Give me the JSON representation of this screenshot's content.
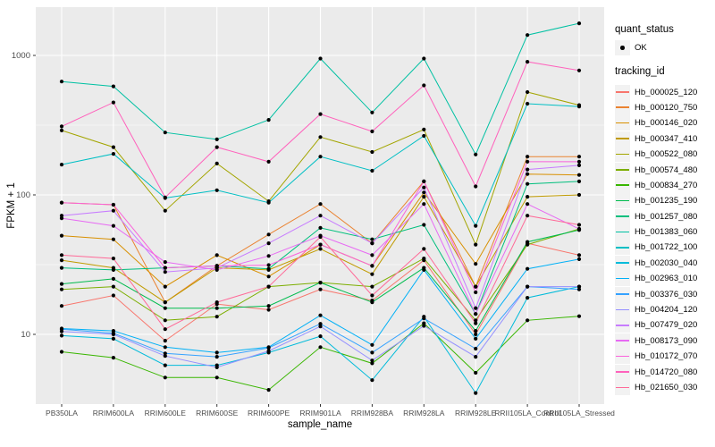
{
  "figure": {
    "background": "#FFFFFF",
    "panel_bg": "#EBEBEB",
    "grid_color": "#FFFFFF",
    "tick_color": "#333333",
    "axis_text_color": "#4D4D4D",
    "point_color": "#000000",
    "legend_key_bg": "#F2F2F2"
  },
  "chart_data": {
    "type": "line",
    "title": "",
    "xlabel": "sample_name",
    "ylabel": "FPKM + 1",
    "y_scale": "log10",
    "grid": true,
    "legend_position": "right",
    "y_ticks": [
      "10",
      "100",
      "1000"
    ],
    "y_minor_ticks": [
      31.623,
      316.23
    ],
    "y_range_log10": [
      0.5,
      3.3462
    ],
    "categories": [
      "PB350LA",
      "RRIM600LA",
      "RRIM600LE",
      "RRIM600SE",
      "RRIM600PE",
      "RRIM901LA",
      "RRIM928BA",
      "RRIM928LA",
      "RRIM928LE",
      "RRII105LA_Control",
      "RRII105LA_Stressed"
    ],
    "legend": {
      "quant_status_title": "quant_status",
      "quant_status_items": [
        "OK"
      ],
      "tracking_id_title": "tracking_id"
    },
    "series": [
      {
        "name": "Hb_000025_120",
        "color": "#F8766D",
        "values": [
          16,
          19,
          9,
          16.5,
          15,
          21,
          17.5,
          34,
          10,
          45,
          37
        ]
      },
      {
        "name": "Hb_000120_750",
        "color": "#EA8331",
        "values": [
          88,
          85,
          17,
          31,
          52,
          86,
          45,
          125,
          22,
          188,
          188
        ]
      },
      {
        "name": "Hb_000146_020",
        "color": "#D89000",
        "values": [
          51,
          48,
          22,
          37,
          26,
          44,
          31,
          104,
          32,
          141,
          139
        ]
      },
      {
        "name": "Hb_000347_410",
        "color": "#C09B00",
        "values": [
          34,
          30,
          17,
          30,
          29,
          41,
          27,
          97,
          22,
          97,
          100
        ]
      },
      {
        "name": "Hb_000522_080",
        "color": "#A3A500",
        "values": [
          290,
          220,
          77,
          168,
          90,
          260,
          203,
          294,
          44,
          546,
          440
        ]
      },
      {
        "name": "Hb_000574_480",
        "color": "#7CAE00",
        "values": [
          21,
          22,
          12.6,
          13.4,
          22,
          23.5,
          22,
          35,
          12.6,
          44,
          57
        ]
      },
      {
        "name": "Hb_000834_270",
        "color": "#39B600",
        "values": [
          7.5,
          6.8,
          4.9,
          4.9,
          4,
          8.1,
          6.2,
          12,
          5.3,
          12.6,
          13.5
        ]
      },
      {
        "name": "Hb_001235_190",
        "color": "#00BB4E",
        "values": [
          23,
          25,
          15.4,
          15.4,
          16,
          23.5,
          17,
          30,
          10.6,
          46,
          56
        ]
      },
      {
        "name": "Hb_001257_080",
        "color": "#00BF7D",
        "values": [
          30,
          29,
          30,
          31,
          29.5,
          58,
          48,
          61,
          14,
          120,
          125
        ]
      },
      {
        "name": "Hb_001383_060",
        "color": "#00C1A3",
        "values": [
          650,
          600,
          280,
          250,
          345,
          950,
          390,
          950,
          195,
          1400,
          1700
        ]
      },
      {
        "name": "Hb_001722_100",
        "color": "#00BFC4",
        "values": [
          165,
          197,
          95,
          108,
          88,
          188,
          149,
          265,
          60,
          451,
          430
        ]
      },
      {
        "name": "Hb_002030_040",
        "color": "#00BBDA",
        "values": [
          9.8,
          9.3,
          6,
          6,
          7.4,
          9.7,
          4.7,
          13.4,
          3.8,
          18.3,
          22
        ]
      },
      {
        "name": "Hb_002963_010",
        "color": "#00B0F6",
        "values": [
          11,
          10.6,
          8.1,
          7.4,
          8.1,
          13.7,
          8.4,
          29,
          9.3,
          29.5,
          34.6
        ]
      },
      {
        "name": "Hb_003376_030",
        "color": "#35A2FF",
        "values": [
          10.9,
          10.2,
          7.3,
          6.9,
          8,
          11.9,
          7.4,
          13,
          7.9,
          22,
          21
        ]
      },
      {
        "name": "Hb_004204_120",
        "color": "#9590FF",
        "values": [
          10.5,
          10,
          7,
          5.8,
          7.6,
          11.4,
          6.5,
          11.5,
          6.9,
          22,
          22
        ]
      },
      {
        "name": "Hb_007479_020",
        "color": "#C77CFF",
        "values": [
          71,
          77,
          28,
          30,
          45,
          71,
          45,
          113,
          15.4,
          152,
          163
        ]
      },
      {
        "name": "Hb_008173_090",
        "color": "#E76BF3",
        "values": [
          68,
          60,
          33,
          29,
          36.5,
          51,
          37,
          86,
          14,
          86,
          57
        ]
      },
      {
        "name": "Hb_010172_070",
        "color": "#FA62DB",
        "values": [
          88,
          85,
          30,
          31,
          31.4,
          44,
          31,
          125,
          20,
          173,
          173
        ]
      },
      {
        "name": "Hb_014720_080",
        "color": "#FF62BC",
        "values": [
          310,
          460,
          96,
          220,
          173,
          380,
          285,
          610,
          115,
          900,
          780
        ]
      },
      {
        "name": "Hb_021650_030",
        "color": "#FF6A98",
        "values": [
          37,
          35,
          10.9,
          17,
          22,
          50,
          19,
          41,
          12,
          71,
          61
        ]
      }
    ]
  }
}
